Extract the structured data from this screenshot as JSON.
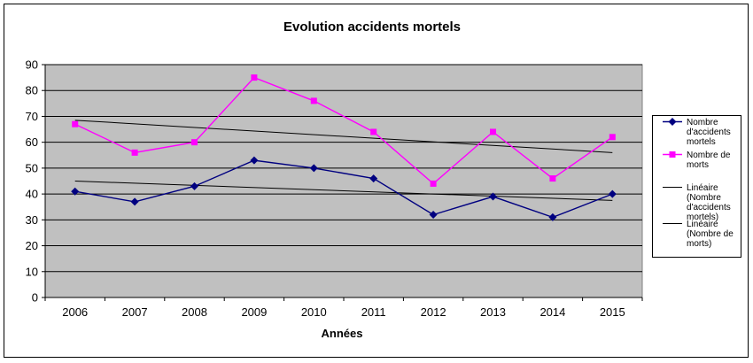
{
  "chart_data": {
    "type": "line",
    "title": "Evolution accidents mortels",
    "xlabel": "Années",
    "ylabel": "",
    "x": [
      "2006",
      "2007",
      "2008",
      "2009",
      "2010",
      "2011",
      "2012",
      "2013",
      "2014",
      "2015"
    ],
    "ylim": [
      0,
      90
    ],
    "yticks": [
      0,
      10,
      20,
      30,
      40,
      50,
      60,
      70,
      80,
      90
    ],
    "grid": true,
    "legend_position": "right",
    "series": [
      {
        "name": "Nombre d'accidents mortels",
        "legend_lines": [
          "Nombre",
          "d'accidents",
          "mortels"
        ],
        "values": [
          41,
          37,
          43,
          53,
          50,
          46,
          32,
          39,
          31,
          40
        ],
        "color": "#000080",
        "marker": "diamond"
      },
      {
        "name": "Nombre de morts",
        "legend_lines": [
          "Nombre de",
          "morts"
        ],
        "values": [
          67,
          56,
          60,
          85,
          76,
          64,
          44,
          64,
          46,
          62
        ],
        "color": "#ff00ff",
        "marker": "square"
      }
    ],
    "trendlines": [
      {
        "name": "Linéaire (Nombre d'accidents mortels)",
        "legend_lines": [
          "Linéaire",
          "(Nombre",
          "d'accidents",
          "mortels)"
        ],
        "start": 45,
        "end": 37.5,
        "color": "#000000"
      },
      {
        "name": "Linéaire (Nombre de morts)",
        "legend_lines": [
          "Linéaire",
          "(Nombre de",
          "morts)"
        ],
        "start": 68.5,
        "end": 56,
        "color": "#000000"
      }
    ],
    "colors": {
      "plot_background": "#c0c0c0",
      "gridline": "#000000"
    }
  }
}
